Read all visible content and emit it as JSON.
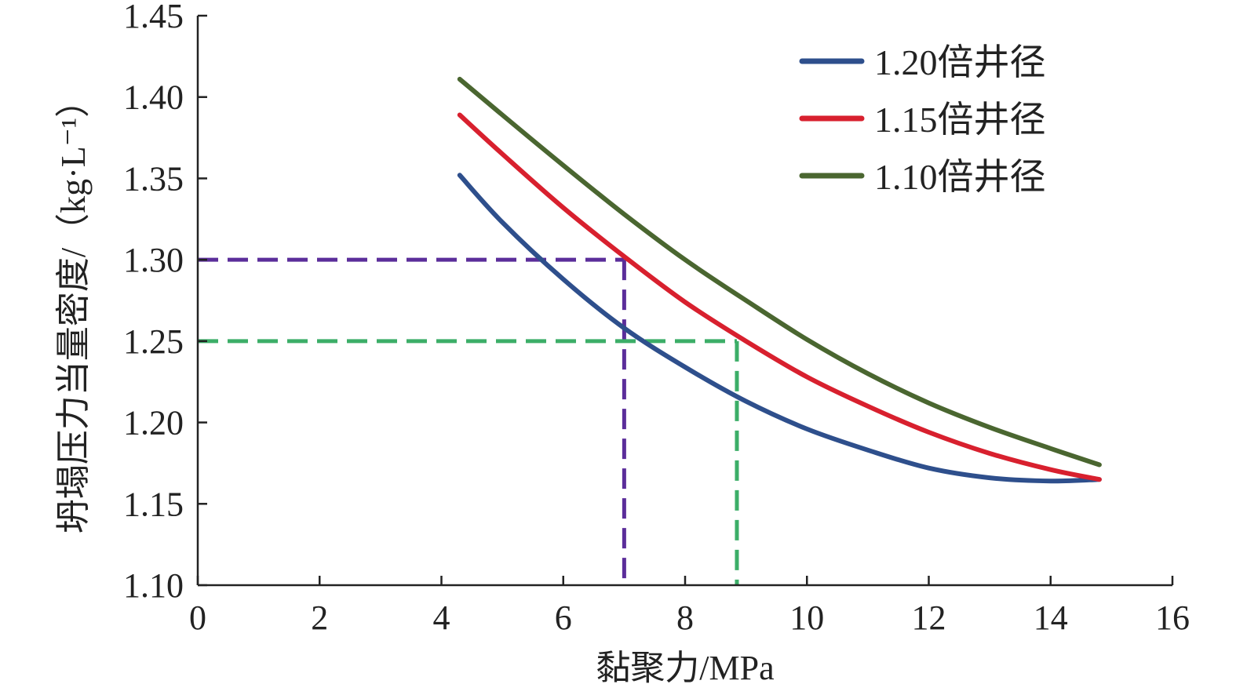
{
  "chart_data": {
    "type": "line",
    "xlabel": "黏聚力/MPa",
    "ylabel": "坍塌压力当量密度/（kg·L⁻¹）",
    "xlim": [
      0,
      16
    ],
    "ylim": [
      1.1,
      1.45
    ],
    "x_ticks": [
      "0",
      "2",
      "4",
      "6",
      "8",
      "10",
      "12",
      "14",
      "16"
    ],
    "y_ticks": [
      "1.10",
      "1.15",
      "1.20",
      "1.25",
      "1.30",
      "1.35",
      "1.40",
      "1.45"
    ],
    "grid": false,
    "legend_position": "top-right",
    "series": [
      {
        "name": "1.20倍井径",
        "color": "#2e4f8c",
        "x": [
          4.3,
          5,
          6,
          7,
          8,
          9,
          10,
          11,
          12,
          13,
          14,
          14.8
        ],
        "y": [
          1.352,
          1.323,
          1.288,
          1.258,
          1.234,
          1.213,
          1.196,
          1.183,
          1.172,
          1.166,
          1.164,
          1.165
        ]
      },
      {
        "name": "1.15倍井径",
        "color": "#d8202e",
        "x": [
          4.3,
          5,
          6,
          7,
          8,
          9,
          10,
          11,
          12,
          13,
          14,
          14.8
        ],
        "y": [
          1.389,
          1.365,
          1.332,
          1.302,
          1.274,
          1.25,
          1.228,
          1.21,
          1.194,
          1.181,
          1.171,
          1.165
        ]
      },
      {
        "name": "1.10倍井径",
        "color": "#4a6630",
        "x": [
          4.3,
          5,
          6,
          7,
          8,
          9,
          10,
          11,
          12,
          13,
          14,
          14.8
        ],
        "y": [
          1.411,
          1.389,
          1.358,
          1.328,
          1.3,
          1.275,
          1.251,
          1.23,
          1.212,
          1.197,
          1.184,
          1.174
        ]
      }
    ],
    "reference_lines": [
      {
        "y": 1.3,
        "x": 7.0,
        "color": "#5b2d9a"
      },
      {
        "y": 1.25,
        "x": 8.85,
        "color": "#3cae68"
      }
    ]
  }
}
